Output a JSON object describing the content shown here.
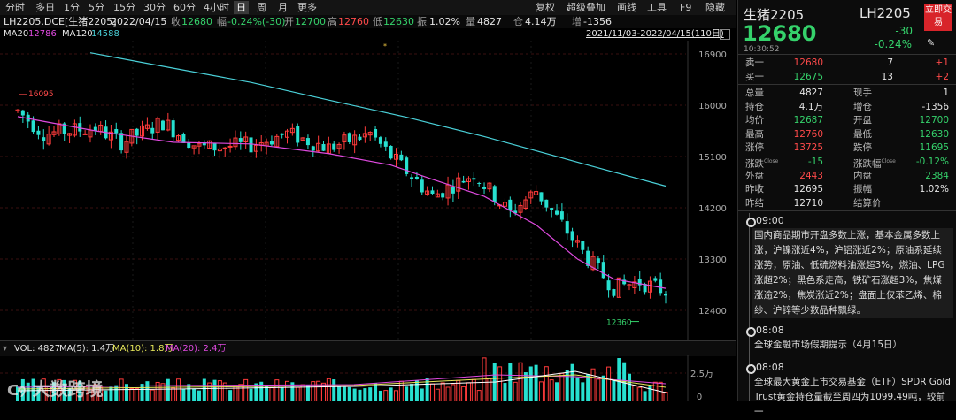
{
  "toolbar": {
    "buttons": [
      "分时",
      "多日",
      "1分",
      "5分",
      "15分",
      "30分",
      "60分",
      "4小时",
      "日",
      "周",
      "月",
      "更多"
    ],
    "active_index": 8,
    "right_buttons": [
      "复权",
      "超级叠加",
      "画线",
      "工具",
      "F9",
      "隐藏"
    ]
  },
  "info": {
    "symbol": "LH2205.DCE[生猪2205]",
    "date": "2022/04/15",
    "close_label": "收",
    "close": "12680",
    "change_label": "幅",
    "change": "-0.24%(-30)",
    "open_label": "开",
    "open": "12700",
    "high_label": "高",
    "high": "12760",
    "low_label": "低",
    "low": "12630",
    "amp_label": "振",
    "amp": "1.02%",
    "vol_label": "量",
    "vol": "4827",
    "oi_label": "仓",
    "oi": "4.14万",
    "inc_label": "增",
    "inc": "-1356"
  },
  "ma_row": {
    "ma20_label": "MA20",
    "ma20_value": "12786",
    "ma120_label": "MA120",
    "ma120_value": "14588",
    "range": "2021/11/03-2022/04/15(110日)"
  },
  "price_axis": [
    "16900",
    "16000",
    "15100",
    "14200",
    "13300",
    "12400"
  ],
  "annotations": {
    "high_label": "16095",
    "low_label": "12360"
  },
  "volume": {
    "vol_label": "VOL: 4827",
    "ma5": "MA(5): 1.4万",
    "ma10": "MA(10): 1.8万",
    "ma20": "MA(20): 2.4万",
    "axis": [
      "2.5万",
      "0"
    ]
  },
  "colors": {
    "up": "#ff3b3b",
    "down": "#27e0d0",
    "ma20": "#e04ae0",
    "ma120": "#4ad0d8",
    "grid": "#3a1010"
  },
  "chart_data": {
    "type": "candlestick",
    "ylim": [
      12200,
      17100
    ],
    "ma120": [
      {
        "i": 14,
        "v": 16920
      },
      {
        "i": 30,
        "v": 16650
      },
      {
        "i": 45,
        "v": 16400
      },
      {
        "i": 60,
        "v": 16090
      },
      {
        "i": 75,
        "v": 15790
      },
      {
        "i": 90,
        "v": 15450
      },
      {
        "i": 110,
        "v": 14950
      },
      {
        "i": 125,
        "v": 14580
      }
    ],
    "ma20": [
      {
        "i": 0,
        "v": 15800
      },
      {
        "i": 15,
        "v": 15550
      },
      {
        "i": 30,
        "v": 15350
      },
      {
        "i": 45,
        "v": 15320
      },
      {
        "i": 60,
        "v": 15150
      },
      {
        "i": 72,
        "v": 14950
      },
      {
        "i": 80,
        "v": 14700
      },
      {
        "i": 90,
        "v": 14400
      },
      {
        "i": 100,
        "v": 13900
      },
      {
        "i": 108,
        "v": 13300
      },
      {
        "i": 115,
        "v": 12950
      },
      {
        "i": 125,
        "v": 12786
      }
    ],
    "candles_note": "values estimated from screenshot"
  },
  "right": {
    "name": "生猪2205",
    "code": "LH2205",
    "trade_btn": "立即交易",
    "price": "12680",
    "change": "-30",
    "change_pct": "-0.24%",
    "time": "10:30:52",
    "sell1_label": "卖一",
    "sell1_price": "12680",
    "sell1_qty": "7",
    "sell1_delta": "+1",
    "buy1_label": "买一",
    "buy1_price": "12675",
    "buy1_qty": "13",
    "buy1_delta": "+2",
    "stats": [
      {
        "l": "总量",
        "v": "4827",
        "c": "white",
        "l2": "现手",
        "v2": "1",
        "c2": "white"
      },
      {
        "l": "持仓",
        "v": "4.1万",
        "c": "white",
        "l2": "增仓",
        "v2": "-1356",
        "c2": "white"
      },
      {
        "l": "均价",
        "v": "12687",
        "c": "green",
        "l2": "开盘",
        "v2": "12700",
        "c2": "green"
      },
      {
        "l": "最高",
        "v": "12760",
        "c": "red",
        "l2": "最低",
        "v2": "12630",
        "c2": "green"
      },
      {
        "l": "涨停",
        "v": "13725",
        "c": "red",
        "l2": "跌停",
        "v2": "11695",
        "c2": "green"
      },
      {
        "l": "涨跌",
        "v": "-15",
        "c": "green",
        "l2": "涨跌幅",
        "v2": "-0.12%",
        "c2": "green"
      },
      {
        "l": "外盘",
        "v": "2443",
        "c": "red",
        "l2": "内盘",
        "v2": "2384",
        "c2": "green"
      },
      {
        "l": "昨收",
        "v": "12695",
        "c": "white",
        "l2": "振幅",
        "v2": "1.02%",
        "c2": "white"
      },
      {
        "l": "昨结",
        "v": "12710",
        "c": "white",
        "l2": "结算价",
        "v2": "",
        "c2": "white"
      }
    ],
    "close_sup": "Close",
    "news": [
      {
        "time": "09:00",
        "text": "国内商品期市开盘多数上涨，基本金属多数上涨，沪镍涨近4%，沪铝涨近2%；原油系延续涨势，原油、低硫燃料油涨超3%，燃油、LPG涨超2%；黑色系走高，铁矿石涨超3%，焦煤涨逾2%，焦炭涨近2%；盘面上仅苯乙烯、棉纱、沪锌等少数品种飘绿。"
      },
      {
        "time": "08:08",
        "text": "全球金融市场假期提示（4月15日）"
      },
      {
        "time": "08:08",
        "text": "全球最大黄金上市交易基金（ETF）SPDR Gold Trust黄金持仓量截至周四为1099.49吨，较前一"
      }
    ]
  },
  "logo": {
    "text": "大数跨境"
  }
}
